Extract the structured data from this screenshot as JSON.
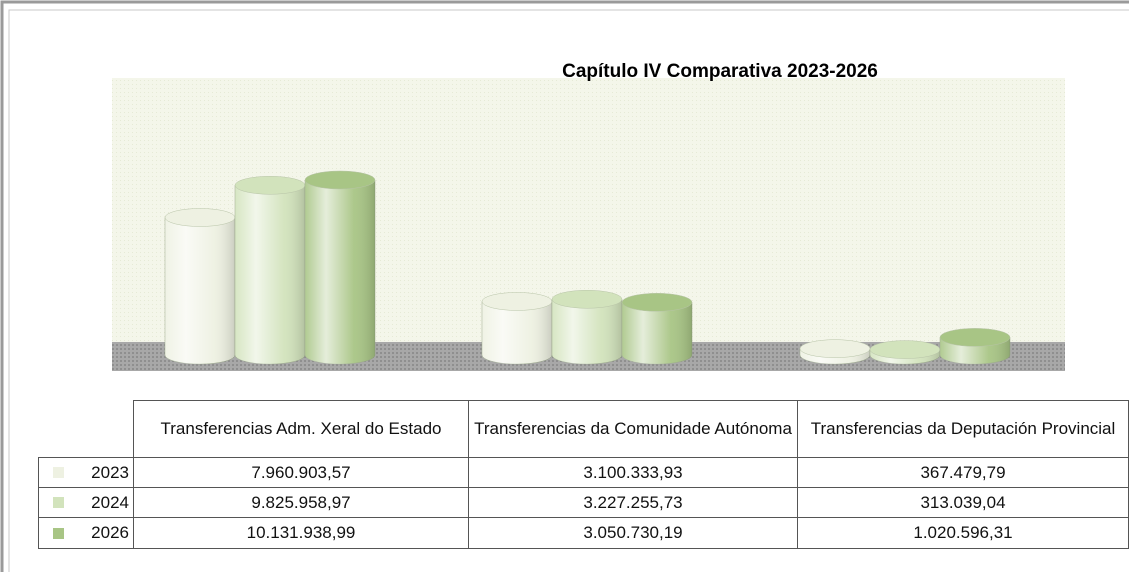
{
  "chart_data": {
    "type": "bar",
    "title": "Capítulo IV Comparativa 2023-2026",
    "categories": [
      "Transferencias Adm. Xeral do Estado",
      "Transferencias da Comunidade Autónoma",
      "Transferencias da Deputación Provincial"
    ],
    "series": [
      {
        "name": "2023",
        "color": "#eef1e2",
        "values": [
          7960903.57,
          3100333.93,
          367479.79
        ],
        "value_labels": [
          "7.960.903,57",
          "3.100.333,93",
          "367.479,79"
        ]
      },
      {
        "name": "2024",
        "color": "#d2e3bc",
        "values": [
          9825958.97,
          3227255.73,
          313039.04
        ],
        "value_labels": [
          "9.825.958,97",
          "3.227.255,73",
          "313.039,04"
        ]
      },
      {
        "name": "2026",
        "color": "#a8c585",
        "values": [
          10131938.99,
          3050730.19,
          1020596.31
        ],
        "value_labels": [
          "10.131.938,99",
          "3.050.730,19",
          "1.020.596,31"
        ]
      }
    ]
  }
}
